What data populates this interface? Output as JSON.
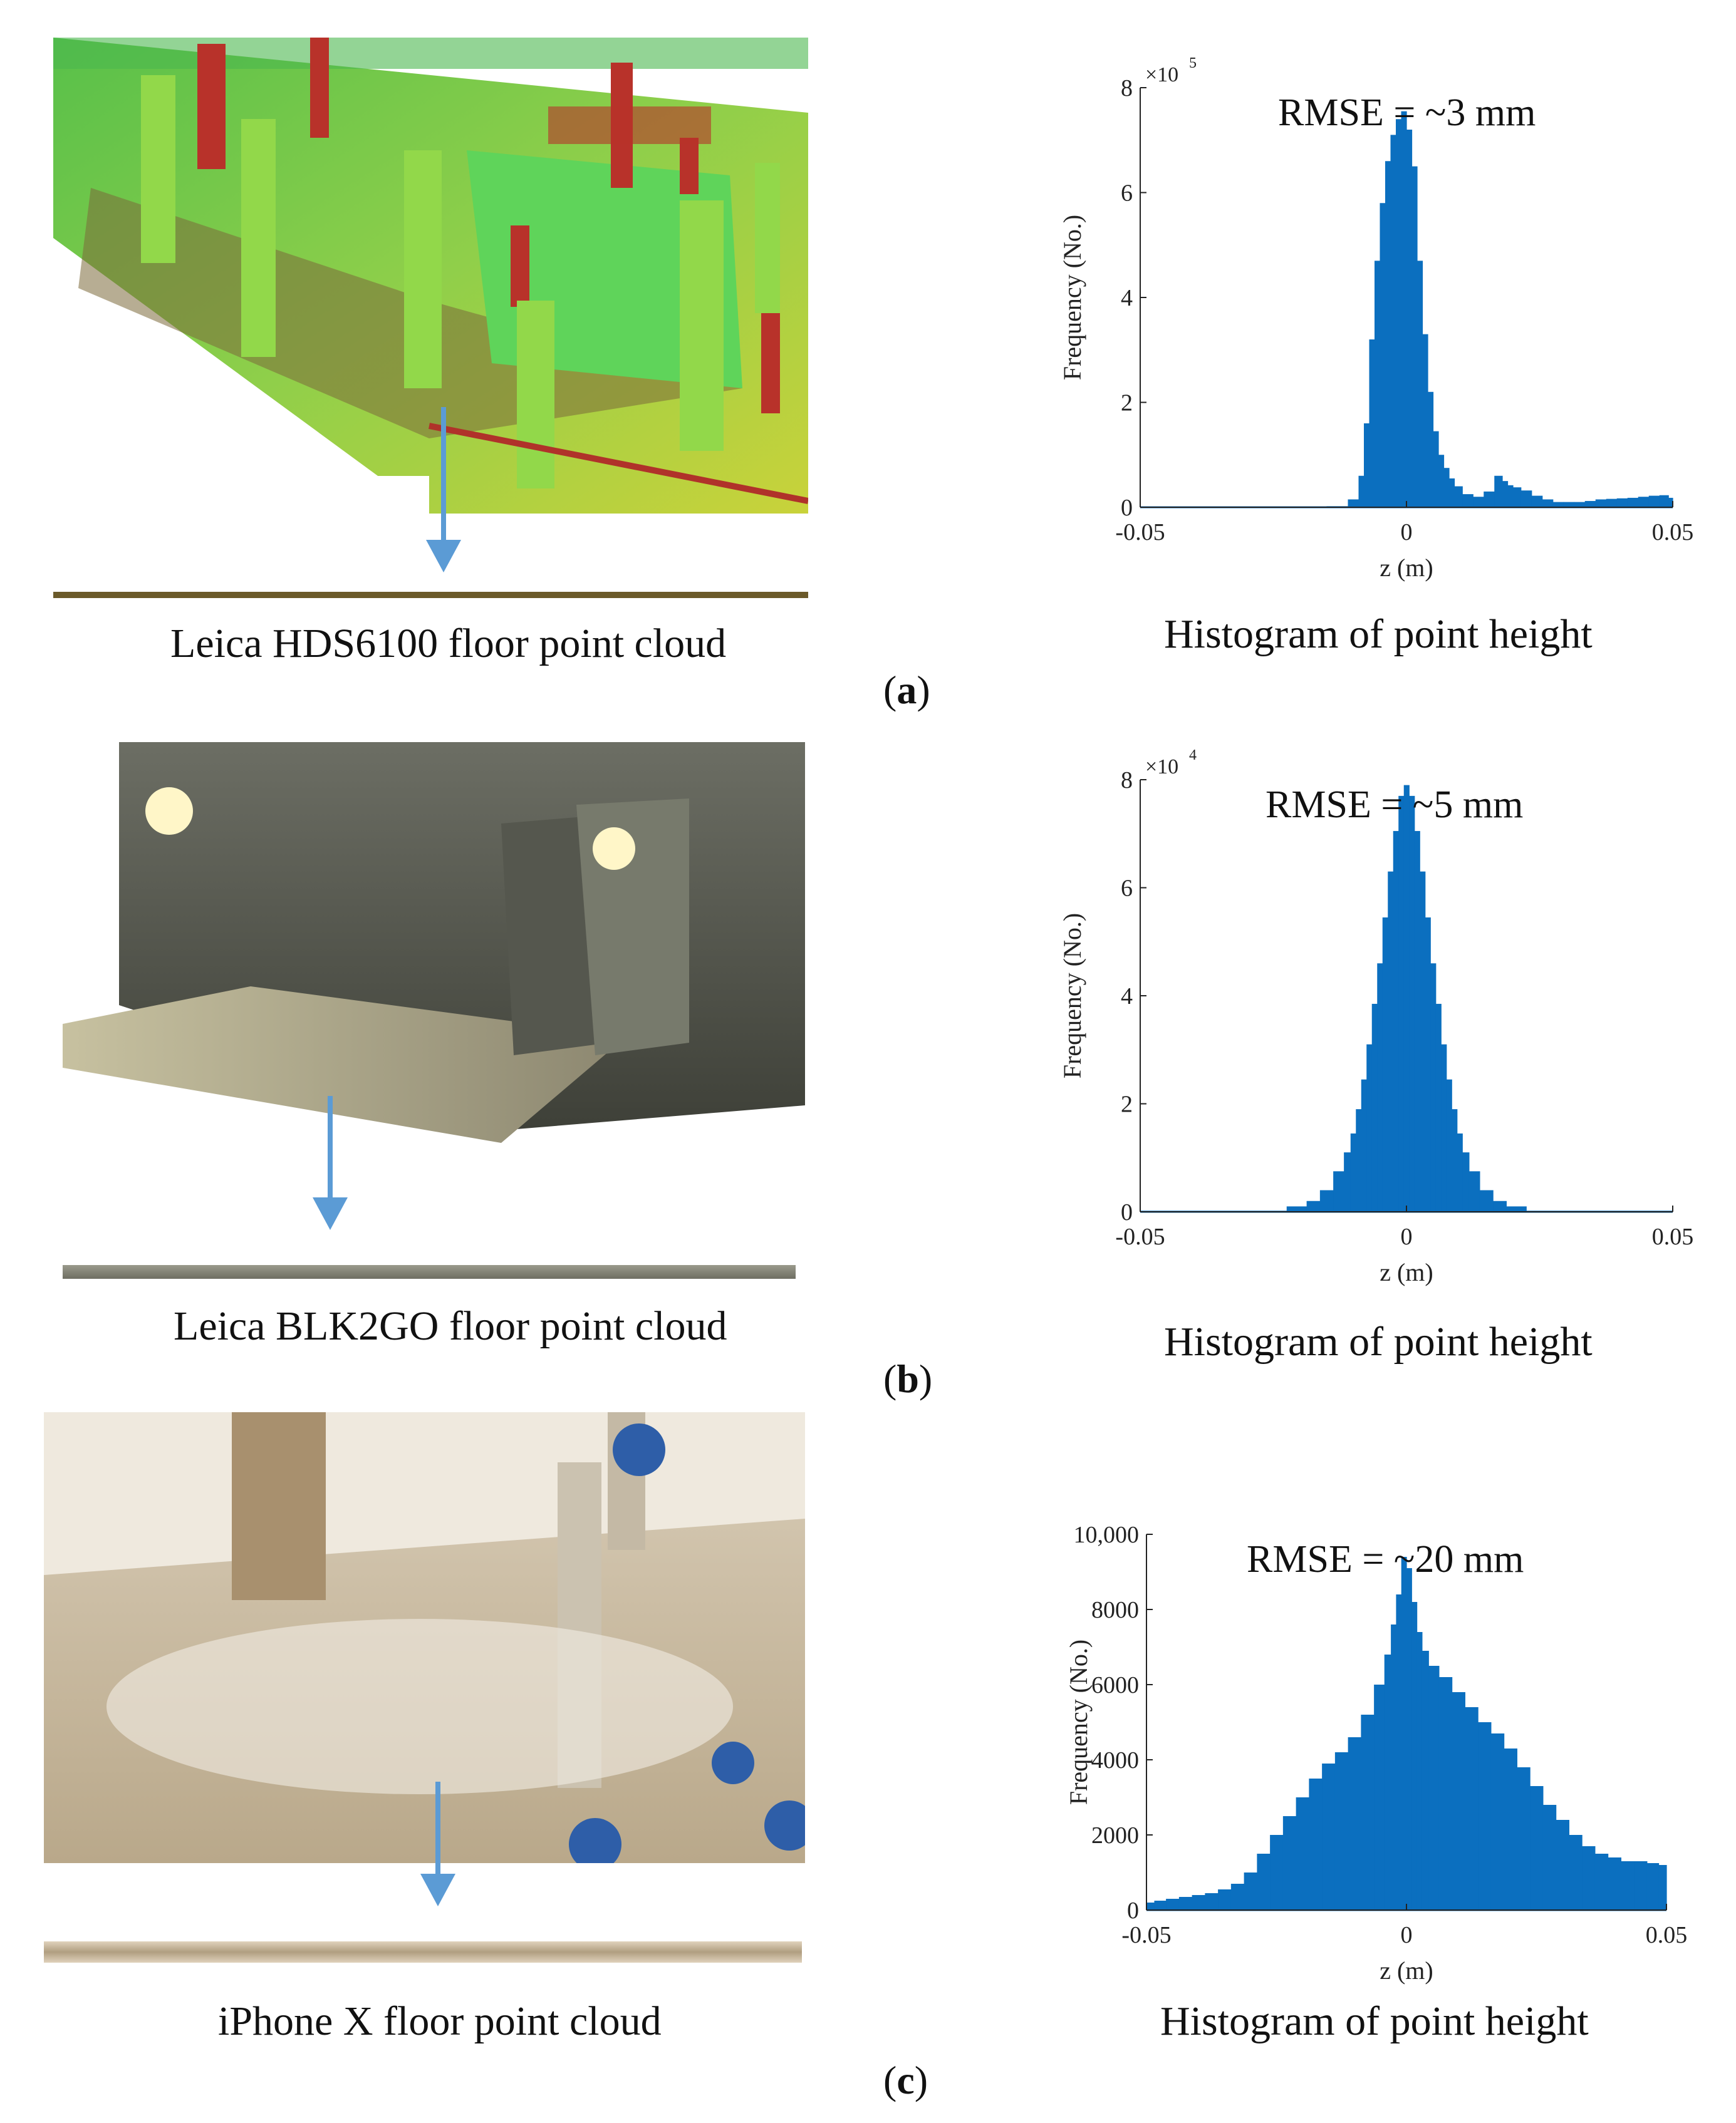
{
  "panels": [
    {
      "label": "a",
      "source_caption": "Leica HDS6100 floor point cloud",
      "chart_caption": "Histogram of point height",
      "photo_icon": "construction-site-point-cloud-image",
      "colors": {
        "bars": "#0b6fbf",
        "arrow": "#5b9bd5"
      }
    },
    {
      "label": "b",
      "source_caption": "Leica BLK2GO floor point cloud",
      "chart_caption": "Histogram of point height",
      "photo_icon": "room-interior-point-cloud-image",
      "colors": {
        "bars": "#0b6fbf",
        "arrow": "#5b9bd5"
      }
    },
    {
      "label": "c",
      "source_caption": "iPhone X floor point cloud",
      "chart_caption": "Histogram of point height",
      "photo_icon": "pipe-room-point-cloud-image",
      "colors": {
        "bars": "#0b6fbf",
        "arrow": "#5b9bd5"
      }
    }
  ],
  "chart_data": [
    {
      "type": "bar",
      "annotation": "RMSE = ~3 mm",
      "xlabel": "z (m)",
      "ylabel": "Frequency (No.)",
      "exponent_label": "×10",
      "exponent_power": "5",
      "xlim": [
        -0.05,
        0.05
      ],
      "ylim": [
        0,
        8
      ],
      "xticks": [
        "-0.05",
        "0",
        "0.05"
      ],
      "yticks": [
        "0",
        "2",
        "4",
        "6",
        "8"
      ],
      "bin_centers": [
        -0.0325,
        -0.0275,
        -0.0225,
        -0.0175,
        -0.0125,
        -0.0095,
        -0.0085,
        -0.0075,
        -0.0065,
        -0.0055,
        -0.0045,
        -0.0035,
        -0.0025,
        -0.0015,
        -0.0005,
        0.0005,
        0.0015,
        0.0025,
        0.0035,
        0.0045,
        0.0055,
        0.0065,
        0.0075,
        0.0085,
        0.0095,
        0.0115,
        0.0135,
        0.0155,
        0.0175,
        0.0185,
        0.0195,
        0.0205,
        0.0225,
        0.0245,
        0.0265,
        0.0285,
        0.0305,
        0.0325,
        0.0345,
        0.0365,
        0.0385,
        0.0405,
        0.0425,
        0.0445,
        0.0465,
        0.0485,
        0.0499
      ],
      "values": [
        0,
        0,
        0,
        0,
        0.02,
        0.15,
        0.6,
        1.6,
        3.2,
        4.7,
        5.8,
        6.6,
        7.1,
        7.4,
        7.55,
        7.2,
        6.5,
        4.7,
        3.3,
        2.2,
        1.45,
        1.0,
        0.75,
        0.55,
        0.4,
        0.25,
        0.2,
        0.3,
        0.6,
        0.5,
        0.42,
        0.38,
        0.32,
        0.22,
        0.15,
        0.1,
        0.1,
        0.1,
        0.12,
        0.15,
        0.16,
        0.17,
        0.18,
        0.2,
        0.22,
        0.23,
        0.18
      ]
    },
    {
      "type": "bar",
      "annotation": "RMSE = ~5 mm",
      "xlabel": "z (m)",
      "ylabel": "Frequency (No.)",
      "exponent_label": "×10",
      "exponent_power": "4",
      "xlim": [
        -0.05,
        0.05
      ],
      "ylim": [
        0,
        8
      ],
      "xticks": [
        "-0.05",
        "0",
        "0.05"
      ],
      "yticks": [
        "0",
        "2",
        "4",
        "6",
        "8"
      ],
      "bin_centers": [
        -0.025,
        -0.02,
        -0.0175,
        -0.015,
        -0.0125,
        -0.011,
        -0.01,
        -0.009,
        -0.008,
        -0.007,
        -0.006,
        -0.005,
        -0.004,
        -0.003,
        -0.002,
        -0.001,
        0,
        0.001,
        0.002,
        0.003,
        0.004,
        0.005,
        0.006,
        0.007,
        0.008,
        0.009,
        0.01,
        0.011,
        0.0125,
        0.015,
        0.0175,
        0.02,
        0.025
      ],
      "values": [
        0.02,
        0.1,
        0.2,
        0.4,
        0.75,
        1.1,
        1.45,
        1.9,
        2.45,
        3.1,
        3.85,
        4.6,
        5.45,
        6.3,
        7.05,
        7.7,
        7.9,
        7.7,
        7.05,
        6.3,
        5.45,
        4.6,
        3.85,
        3.1,
        2.45,
        1.9,
        1.45,
        1.1,
        0.75,
        0.4,
        0.2,
        0.1,
        0.02
      ]
    },
    {
      "type": "bar",
      "annotation": "RMSE = ~20 mm",
      "xlabel": "z (m)",
      "ylabel": "Frequency (No.)",
      "xlim": [
        -0.05,
        0.05
      ],
      "ylim": [
        0,
        10000
      ],
      "xticks": [
        "-0.05",
        "0",
        "0.05"
      ],
      "yticks": [
        "0",
        "2000",
        "4000",
        "6000",
        "8000",
        "10,000"
      ],
      "bin_centers": [
        -0.0495,
        -0.0475,
        -0.045,
        -0.0425,
        -0.04,
        -0.0375,
        -0.035,
        -0.0325,
        -0.03,
        -0.0275,
        -0.025,
        -0.0225,
        -0.02,
        -0.0175,
        -0.015,
        -0.0125,
        -0.01,
        -0.0075,
        -0.005,
        -0.0035,
        -0.0025,
        -0.0015,
        -0.0005,
        0.0005,
        0.0015,
        0.0025,
        0.0035,
        0.005,
        0.0075,
        0.01,
        0.0125,
        0.015,
        0.0175,
        0.02,
        0.0225,
        0.025,
        0.0275,
        0.03,
        0.0325,
        0.035,
        0.0375,
        0.04,
        0.0425,
        0.045,
        0.0475,
        0.0495
      ],
      "values": [
        200,
        250,
        300,
        350,
        400,
        450,
        550,
        700,
        1000,
        1500,
        2000,
        2500,
        3000,
        3500,
        3900,
        4200,
        4600,
        5200,
        6000,
        6800,
        7600,
        8400,
        9400,
        9100,
        8200,
        7400,
        6900,
        6500,
        6200,
        5800,
        5400,
        5000,
        4700,
        4300,
        3800,
        3300,
        2800,
        2400,
        2000,
        1700,
        1500,
        1400,
        1300,
        1300,
        1250,
        1200
      ]
    }
  ]
}
